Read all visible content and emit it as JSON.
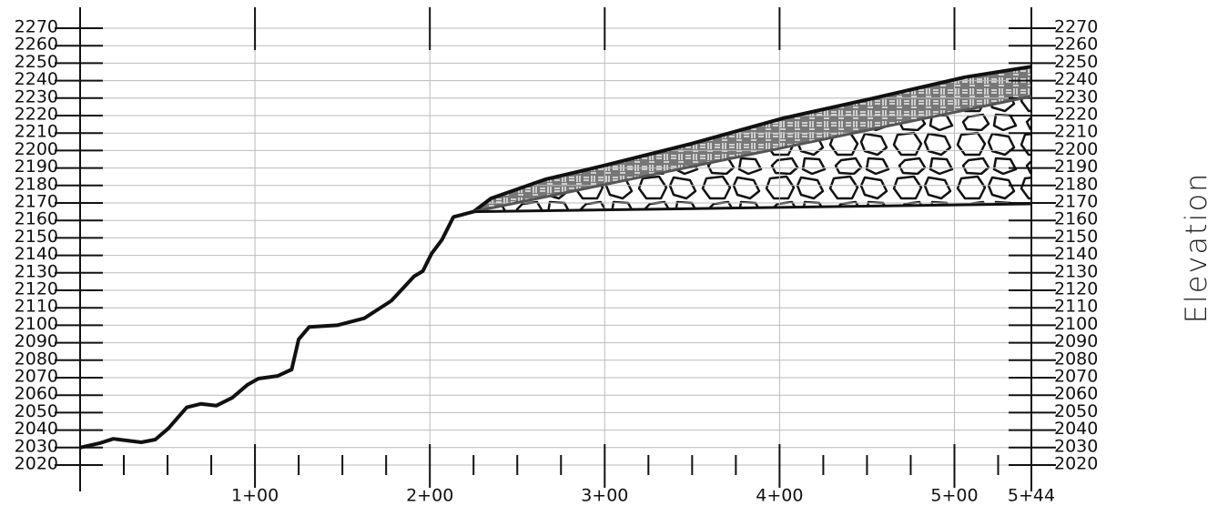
{
  "chart_data": {
    "type": "line",
    "ylabel": "Elevation",
    "xlim": [
      0,
      544
    ],
    "ylim": [
      2020,
      2270
    ],
    "xticks": [
      {
        "value": 100,
        "label": "1+00"
      },
      {
        "value": 200,
        "label": "2+00"
      },
      {
        "value": 300,
        "label": "3+00"
      },
      {
        "value": 400,
        "label": "4+00"
      },
      {
        "value": 500,
        "label": "5+00"
      },
      {
        "value": 544,
        "label": "5+44"
      }
    ],
    "xminorticks": [
      25,
      50,
      75,
      125,
      150,
      175,
      225,
      250,
      275,
      325,
      350,
      375,
      425,
      450,
      475,
      525
    ],
    "yticks": [
      2020,
      2030,
      2040,
      2050,
      2060,
      2070,
      2080,
      2090,
      2100,
      2110,
      2120,
      2130,
      2140,
      2150,
      2160,
      2170,
      2180,
      2190,
      2200,
      2210,
      2220,
      2230,
      2240,
      2250,
      2260,
      2270
    ],
    "grid": true,
    "series": [
      {
        "color": "#111111",
        "x": [
          0,
          11.5,
          19,
          27,
          35,
          43,
          50.5,
          61,
          69,
          78,
          87,
          95.8,
          102,
          113,
          121,
          125,
          131,
          147,
          162.5,
          178,
          191,
          196,
          201,
          207,
          213.5,
          225,
          235,
          266,
          298,
          350,
          402,
          454,
          506,
          544
        ],
        "values": [
          2030,
          2032.6,
          2035,
          2034,
          2033,
          2034.6,
          2041,
          2053,
          2055,
          2054,
          2058.5,
          2066,
          2069.5,
          2071,
          2074.7,
          2092,
          2099,
          2100,
          2104,
          2114,
          2128,
          2131,
          2141,
          2149,
          2162,
          2165,
          2172.6,
          2183.5,
          2191,
          2204,
          2218.5,
          2230,
          2242,
          2248
        ]
      },
      {
        "color": "#555555",
        "x": [
          225,
          544
        ],
        "values": [
          2165,
          2231
        ]
      },
      {
        "color": "#111111",
        "x": [
          225,
          544
        ],
        "values": [
          2165,
          2169.5
        ]
      }
    ]
  }
}
